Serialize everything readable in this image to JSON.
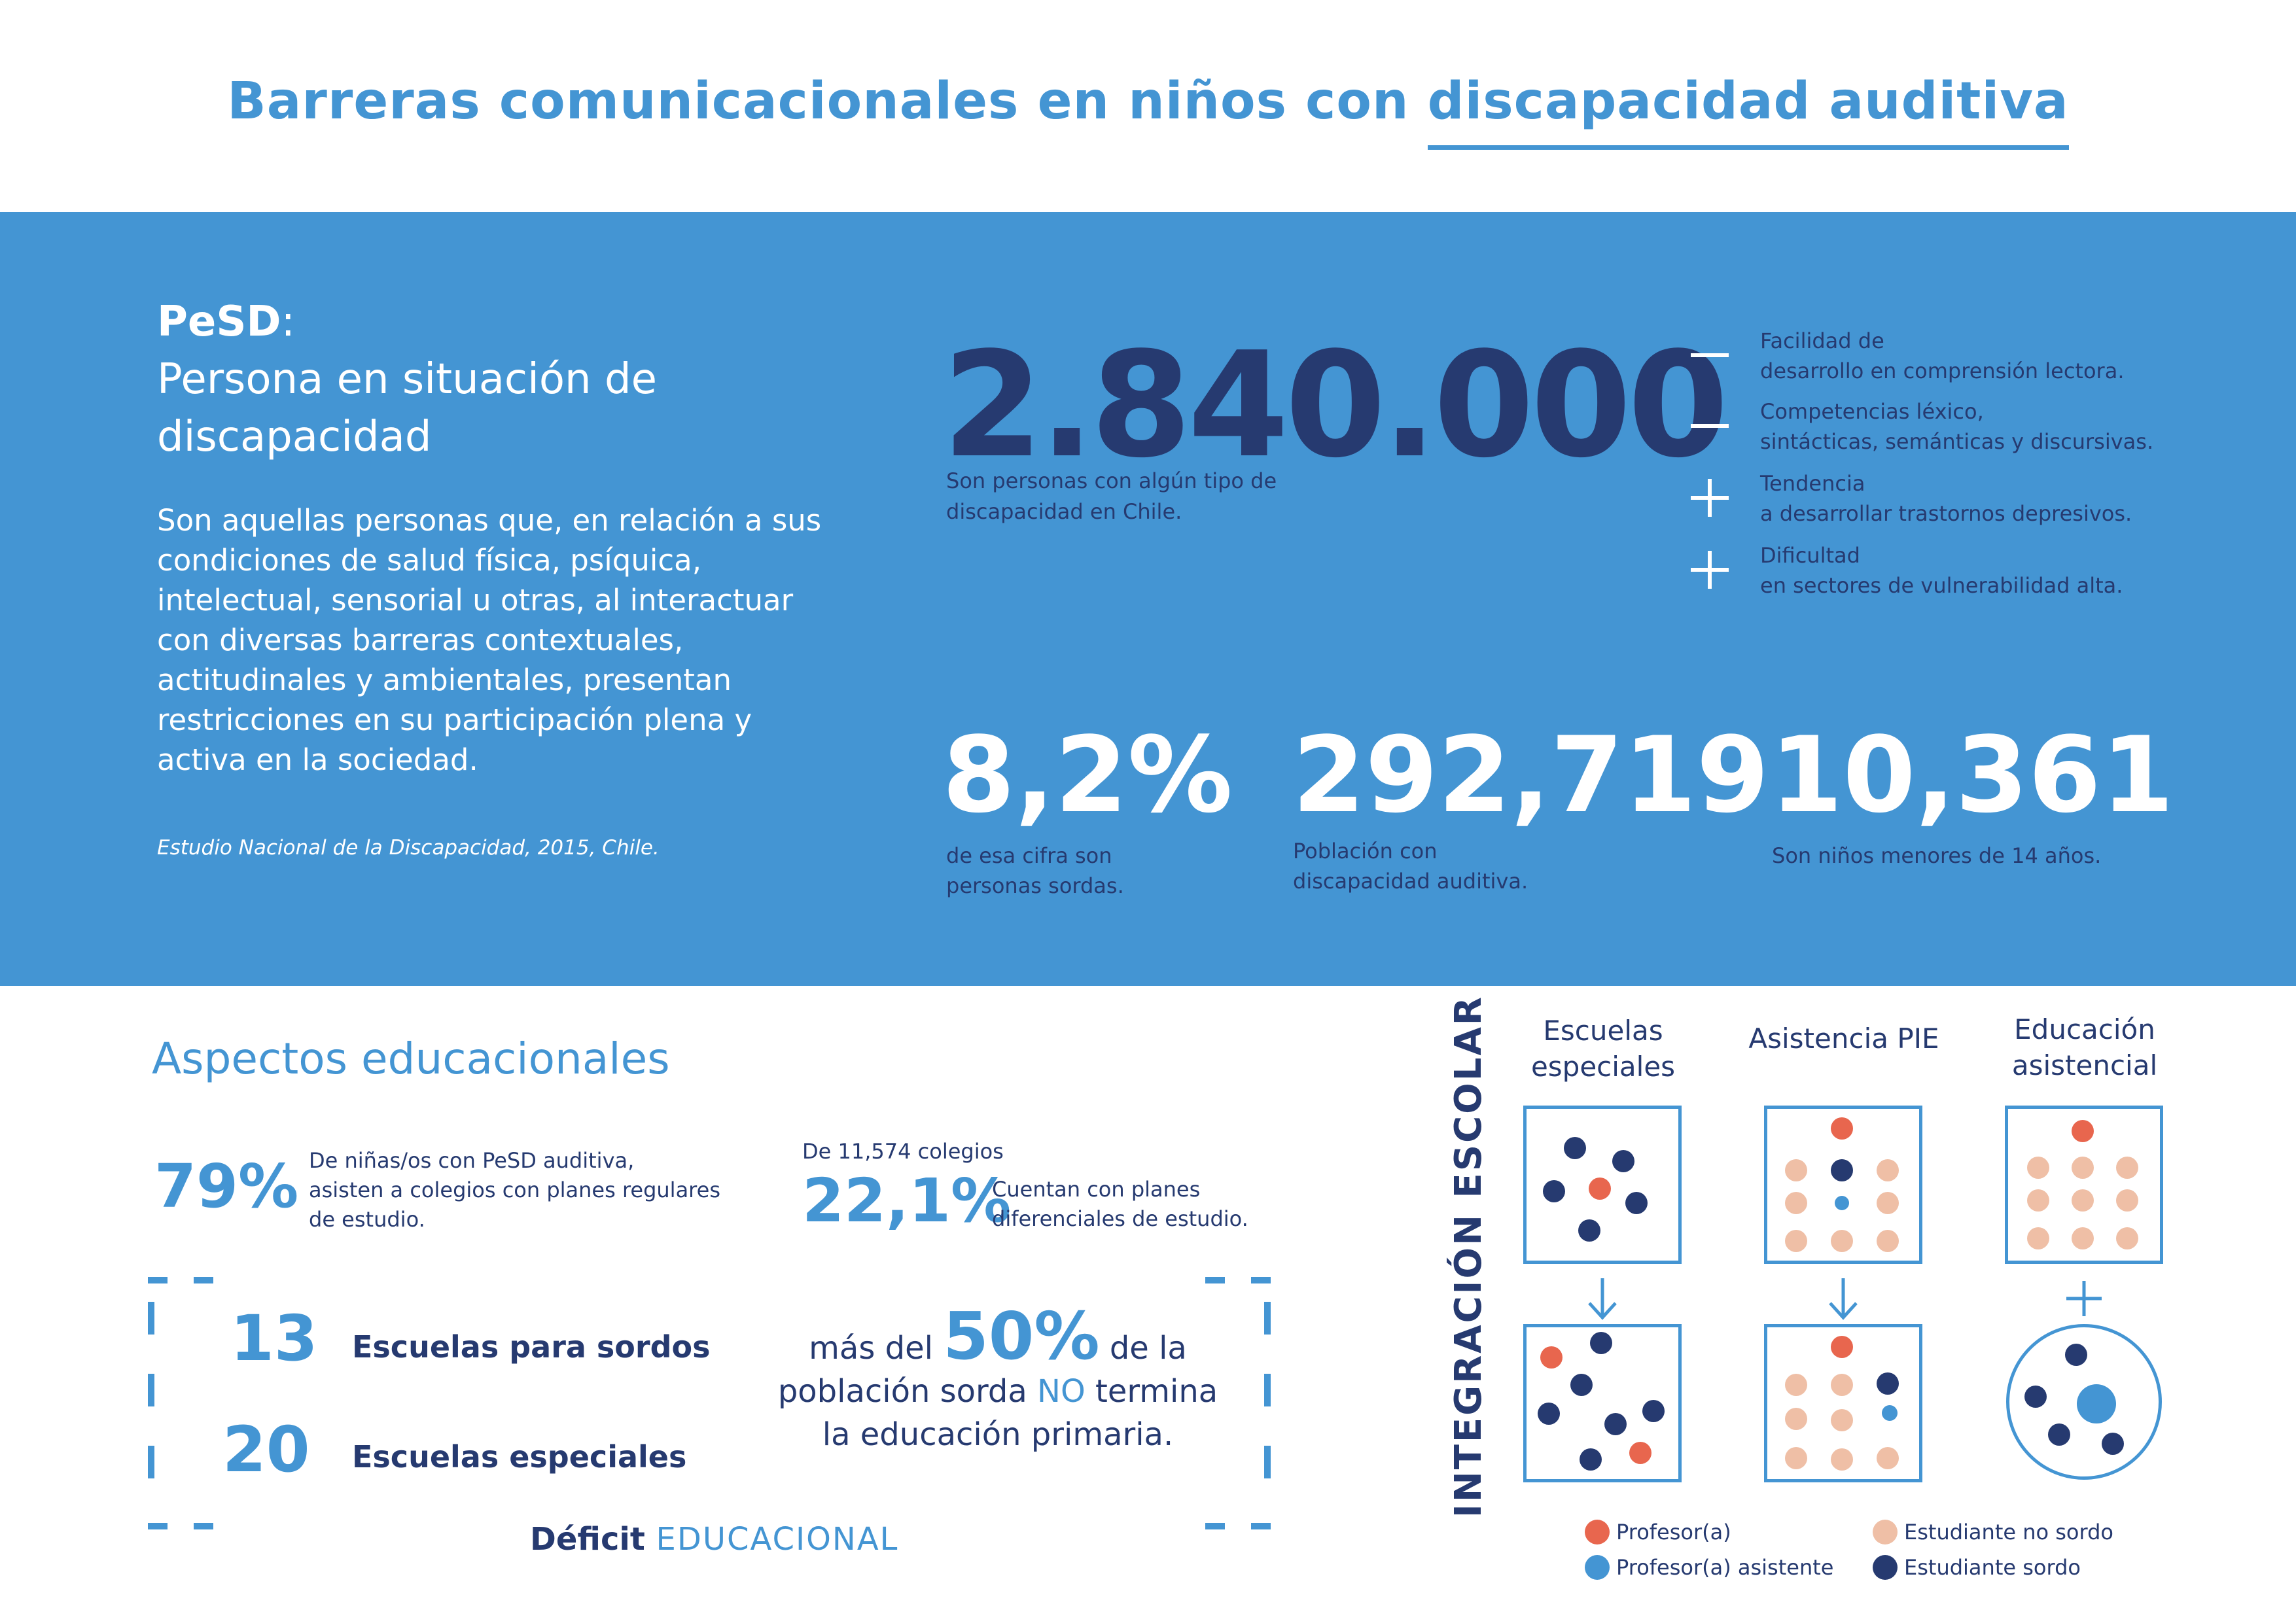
{
  "title": {
    "part1": "Barreras comunicacionales en niños con ",
    "part2": "discapacidad auditiva"
  },
  "pesd": {
    "abbr": "PeSD",
    "colon": ":",
    "line1": "Persona en situación de",
    "line2": "discapacidad",
    "definition": "Son aquellas personas que, en relación a sus condiciones de salud física, psíquica, intelectual, sensorial u otras, al interactuar con diversas  barreras contextuales, actitudinales y ambientales, presentan restricciones en su participación plena y activa en la sociedad.",
    "source": "Estudio Nacional de la Discapacidad, 2015, Chile."
  },
  "total": {
    "value": "2.840.000",
    "caption_l1": "Son personas con algún tipo de",
    "caption_l2": "discapacidad en Chile."
  },
  "factors": [
    {
      "sign": "minus",
      "l1": "Facilidad de",
      "l2": "desarrollo en comprensión lectora."
    },
    {
      "sign": "minus",
      "l1": "Competencias léxico,",
      "l2": "sintácticas, semánticas y discursivas."
    },
    {
      "sign": "plus",
      "l1": "Tendencia",
      "l2": "a desarrollar trastornos depresivos."
    },
    {
      "sign": "plus",
      "l1": "Dificultad",
      "l2": "en sectores de vulnerabilidad alta."
    }
  ],
  "stats": [
    {
      "value": "8,2%",
      "l1": "de esa cifra son",
      "l2": "personas sordas."
    },
    {
      "value": "292,719",
      "l1": "Población con",
      "l2": "discapacidad auditiva."
    },
    {
      "value": "10,361",
      "l1": "Son niños menores de 14 años.",
      "l2": ""
    }
  ],
  "education": {
    "title": "Aspectos educacionales",
    "pct1": {
      "value": "79%",
      "l1": "De niñas/os con PeSD auditiva,",
      "l2": "asisten a colegios con planes regulares",
      "l3": "de estudio."
    },
    "pct2": {
      "pre": "De 11,574 colegios",
      "value": "22,1%",
      "l1": "Cuentan con planes",
      "l2": "diferenciales de estudio."
    },
    "schools": [
      {
        "count": "13",
        "label": "Escuelas para sordos"
      },
      {
        "count": "20",
        "label": "Escuelas especiales"
      }
    ],
    "fifty": {
      "a": "más del ",
      "num": "50%",
      "b": " de la",
      "c": "población sorda ",
      "no": "NO",
      "d": " termina",
      "e": "la educación primaria."
    },
    "deficit": {
      "a": "Déficit ",
      "b": "EDUCACIONAL"
    }
  },
  "integration": {
    "label": "INTEGRACIÓN ESCOLAR",
    "columns": [
      {
        "l1": "Escuelas",
        "l2": "especiales"
      },
      {
        "l1": "Asistencia PIE",
        "l2": ""
      },
      {
        "l1": "Educación",
        "l2": "asistencial"
      }
    ],
    "colors": {
      "profesor": "#e8664e",
      "asistente": "#4495d3",
      "no_sordo": "#efbfa6",
      "sordo": "#263a70"
    },
    "legend": [
      {
        "key": "profesor",
        "label": "Profesor(a)"
      },
      {
        "key": "asistente",
        "label": "Profesor(a) asistente"
      },
      {
        "key": "no_sordo",
        "label": "Estudiante no sordo"
      },
      {
        "key": "sordo",
        "label": "Estudiante sordo"
      }
    ]
  }
}
